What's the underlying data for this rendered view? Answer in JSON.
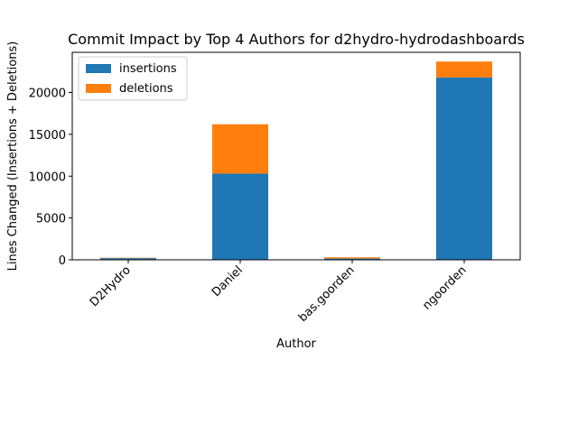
{
  "chart_data": {
    "type": "bar",
    "stacked": true,
    "title": "Commit Impact by Top 4 Authors for d2hydro-hydrodashboards",
    "xlabel": "Author",
    "ylabel": "Lines Changed (Insertions + Deletions)",
    "categories": [
      "D2Hydro",
      "Daniel",
      "bas.goorden",
      "ngoorden"
    ],
    "series": [
      {
        "name": "insertions",
        "color": "#1f77b4",
        "values": [
          200,
          10300,
          150,
          21800
        ]
      },
      {
        "name": "deletions",
        "color": "#ff7f0e",
        "values": [
          50,
          5900,
          150,
          1900
        ]
      }
    ],
    "ylim": [
      0,
      24800
    ],
    "yticks": [
      "0",
      "5000",
      "10000",
      "15000",
      "20000"
    ],
    "grid": false,
    "legend_position": "top-left"
  }
}
